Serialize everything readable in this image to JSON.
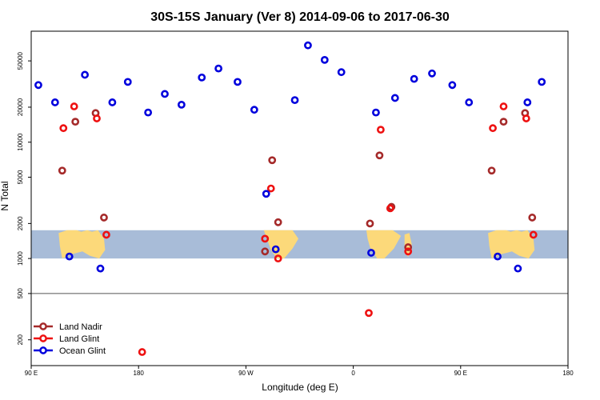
{
  "chart_data": {
    "type": "scatter",
    "title": "30S-15S January (Ver 8)   2014-09-06 to 2017-06-30",
    "xlabel": "Longitude (deg E)",
    "ylabel": "N Total",
    "xlim": [
      90,
      540
    ],
    "ylim": [
      120,
      90000
    ],
    "yscale": "log",
    "x_ticks": [
      {
        "value": 90,
        "label": "90 E"
      },
      {
        "value": 180,
        "label": "180"
      },
      {
        "value": 270,
        "label": "90 W"
      },
      {
        "value": 360,
        "label": "0"
      },
      {
        "value": 450,
        "label": "90 E"
      },
      {
        "value": 540,
        "label": "180"
      }
    ],
    "y_ticks": [
      {
        "value": 200,
        "label": "200"
      },
      {
        "value": 500,
        "label": "500"
      },
      {
        "value": 1000,
        "label": "1000"
      },
      {
        "value": 2000,
        "label": "2000"
      },
      {
        "value": 5000,
        "label": "5000"
      },
      {
        "value": 10000,
        "label": "10000"
      },
      {
        "value": 20000,
        "label": "20000"
      },
      {
        "value": 50000,
        "label": "50000"
      }
    ],
    "reference_line": 500,
    "map_band": {
      "y_min": 1000,
      "y_max": 1750,
      "ocean_color": "#a8bcd8",
      "land_color": "#fcd97a"
    },
    "legend": {
      "position": "bottom-left"
    },
    "series": [
      {
        "name": "Land Nadir",
        "color": "#a52a2a",
        "points": [
          {
            "x": 116,
            "y": 5700
          },
          {
            "x": 127,
            "y": 15000
          },
          {
            "x": 144,
            "y": 17800
          },
          {
            "x": 151,
            "y": 2250
          },
          {
            "x": 292,
            "y": 7000
          },
          {
            "x": 286,
            "y": 1150
          },
          {
            "x": 297,
            "y": 2050
          },
          {
            "x": 374,
            "y": 2000
          },
          {
            "x": 382,
            "y": 7700
          },
          {
            "x": 392,
            "y": 2780
          },
          {
            "x": 406,
            "y": 1250
          },
          {
            "x": 476,
            "y": 5700
          },
          {
            "x": 486,
            "y": 15000
          },
          {
            "x": 504,
            "y": 17800
          },
          {
            "x": 510,
            "y": 2250
          }
        ]
      },
      {
        "name": "Land Glint",
        "color": "#ee1111",
        "points": [
          {
            "x": 117,
            "y": 13200
          },
          {
            "x": 126,
            "y": 20300
          },
          {
            "x": 145,
            "y": 16000
          },
          {
            "x": 153,
            "y": 1600
          },
          {
            "x": 183,
            "y": 157
          },
          {
            "x": 286,
            "y": 1480
          },
          {
            "x": 291,
            "y": 4000
          },
          {
            "x": 297,
            "y": 1000
          },
          {
            "x": 373,
            "y": 340
          },
          {
            "x": 383,
            "y": 12800
          },
          {
            "x": 391,
            "y": 2700
          },
          {
            "x": 406,
            "y": 1150
          },
          {
            "x": 477,
            "y": 13200
          },
          {
            "x": 486,
            "y": 20300
          },
          {
            "x": 505,
            "y": 16000
          },
          {
            "x": 511,
            "y": 1600
          }
        ]
      },
      {
        "name": "Ocean Glint",
        "color": "#0000dd",
        "points": [
          {
            "x": 96,
            "y": 31000
          },
          {
            "x": 110,
            "y": 22000
          },
          {
            "x": 122,
            "y": 1040
          },
          {
            "x": 135,
            "y": 38000
          },
          {
            "x": 148,
            "y": 820
          },
          {
            "x": 158,
            "y": 22000
          },
          {
            "x": 171,
            "y": 33000
          },
          {
            "x": 188,
            "y": 18000
          },
          {
            "x": 202,
            "y": 26000
          },
          {
            "x": 216,
            "y": 21000
          },
          {
            "x": 233,
            "y": 36000
          },
          {
            "x": 247,
            "y": 43000
          },
          {
            "x": 263,
            "y": 33000
          },
          {
            "x": 277,
            "y": 19000
          },
          {
            "x": 287,
            "y": 3600
          },
          {
            "x": 295,
            "y": 1200
          },
          {
            "x": 311,
            "y": 23000
          },
          {
            "x": 322,
            "y": 68000
          },
          {
            "x": 336,
            "y": 51000
          },
          {
            "x": 350,
            "y": 40000
          },
          {
            "x": 375,
            "y": 1120
          },
          {
            "x": 379,
            "y": 18000
          },
          {
            "x": 395,
            "y": 24000
          },
          {
            "x": 411,
            "y": 35000
          },
          {
            "x": 426,
            "y": 39000
          },
          {
            "x": 443,
            "y": 31000
          },
          {
            "x": 457,
            "y": 22000
          },
          {
            "x": 481,
            "y": 1040
          },
          {
            "x": 498,
            "y": 820
          },
          {
            "x": 506,
            "y": 22000
          },
          {
            "x": 518,
            "y": 33000
          }
        ]
      }
    ]
  }
}
